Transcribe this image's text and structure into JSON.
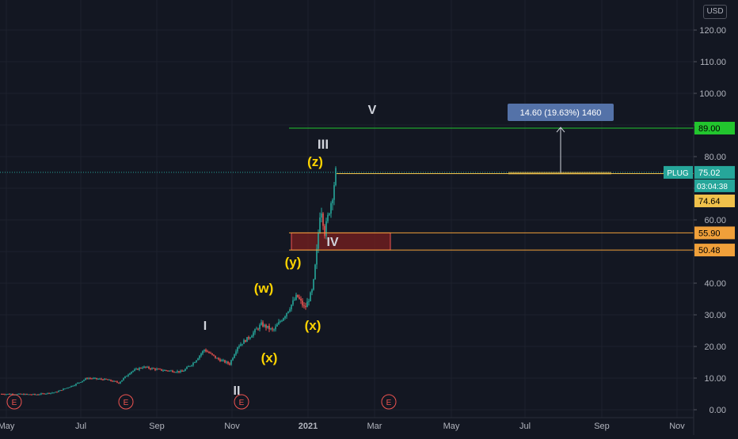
{
  "chart_data": {
    "type": "candlestick",
    "ticker": "PLUG",
    "currency_label": "USD",
    "ylim": [
      0,
      130
    ],
    "x_ticks": [
      "May",
      "Jul",
      "Sep",
      "Nov",
      "2021",
      "Mar",
      "May",
      "Jul",
      "Sep",
      "Nov"
    ],
    "y_ticks": [
      "0.00",
      "10.00",
      "20.00",
      "30.00",
      "40.00",
      "50.00",
      "60.00",
      "70.00",
      "80.00",
      "90.00",
      "100.00",
      "110.00",
      "120.00"
    ],
    "price_tags": [
      {
        "value": 89.0,
        "label": "89.00",
        "color": "#22c52e",
        "text_color": "#000000"
      },
      {
        "value": 74.64,
        "label": "74.64",
        "color": "#f0c14b",
        "text_color": "#000000"
      },
      {
        "value": 55.9,
        "label": "55.90",
        "color": "#f0a03a",
        "text_color": "#000000"
      },
      {
        "value": 50.48,
        "label": "50.48",
        "color": "#f0a03a",
        "text_color": "#000000"
      }
    ],
    "current_price": {
      "value": 75.02,
      "label": "75.02",
      "ticker_label": "PLUG",
      "countdown": "03:04:38",
      "color": "#26a69a"
    },
    "wave_labels": [
      {
        "text": "I",
        "color": "#d1d4dc",
        "x": 259,
        "y": 417
      },
      {
        "text": "II",
        "color": "#d1d4dc",
        "x": 299,
        "y": 499
      },
      {
        "text": "III",
        "color": "#d1d4dc",
        "x": 408,
        "y": 188
      },
      {
        "text": "IV",
        "color": "#d1d4dc",
        "x": 420,
        "y": 311
      },
      {
        "text": "V",
        "color": "#d1d4dc",
        "x": 470,
        "y": 144
      },
      {
        "text": "(w)",
        "color": "#ffd400",
        "x": 333,
        "y": 370
      },
      {
        "text": "(x)",
        "color": "#ffd400",
        "x": 340,
        "y": 458
      },
      {
        "text": "(y)",
        "color": "#ffd400",
        "x": 370,
        "y": 337
      },
      {
        "text": "(x)",
        "color": "#ffd400",
        "x": 395,
        "y": 417
      },
      {
        "text": "(z)",
        "color": "#ffd400",
        "x": 398,
        "y": 210
      }
    ],
    "measure_label": "14.60 (19.63%) 1460",
    "earnings_markers": [
      "E",
      "E",
      "E",
      "E"
    ],
    "colors": {
      "up": "#26a69a",
      "down": "#ef5350",
      "background": "#131722",
      "grid": "#1e222d",
      "axis_text": "#b2b5be"
    }
  }
}
